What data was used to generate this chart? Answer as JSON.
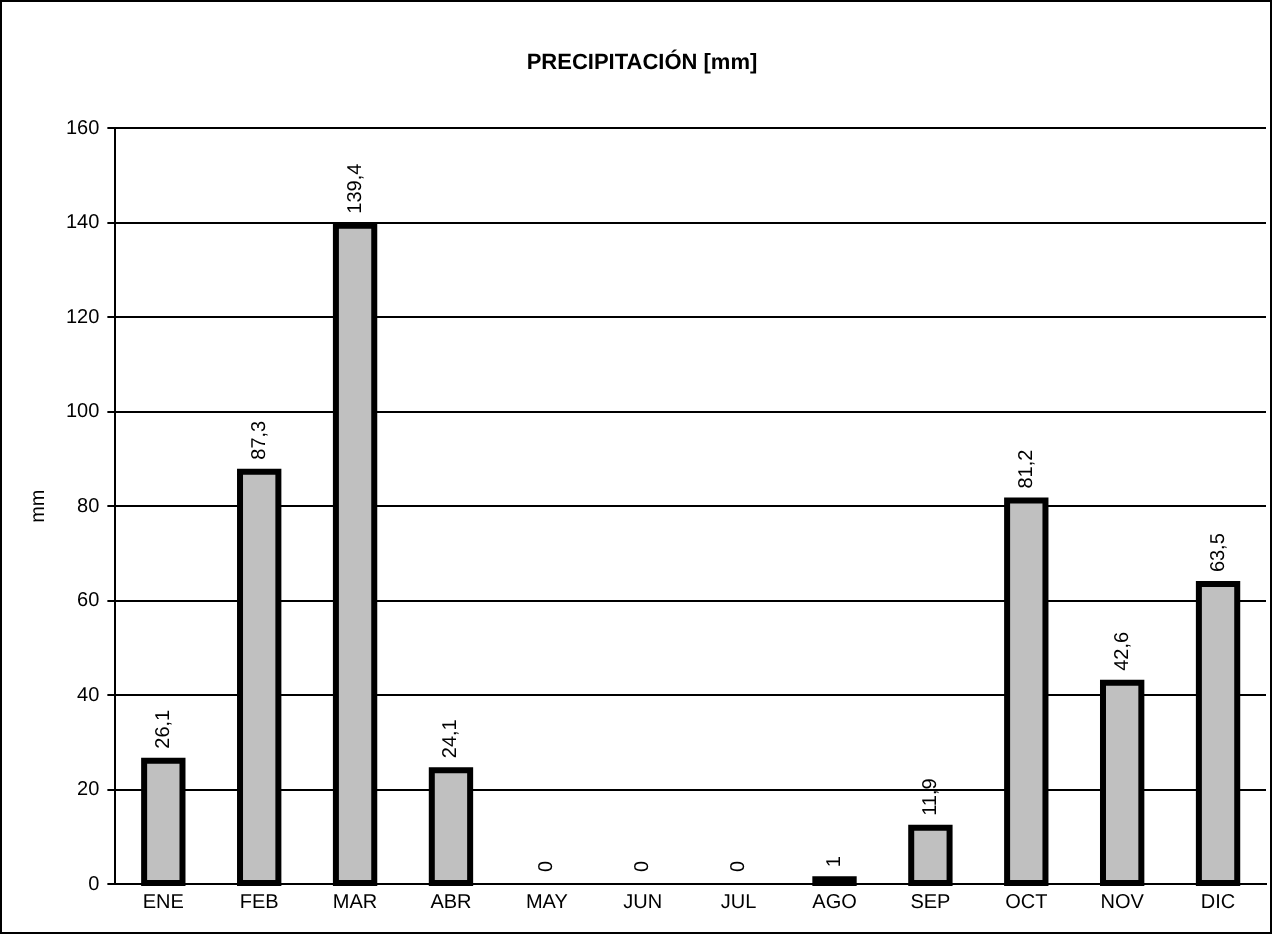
{
  "chart_data": {
    "type": "bar",
    "title": "PRECIPITACIÓN [mm]",
    "ylabel": "mm",
    "categories": [
      "ENE",
      "FEB",
      "MAR",
      "ABR",
      "MAY",
      "JUN",
      "JUL",
      "AGO",
      "SEP",
      "OCT",
      "NOV",
      "DIC"
    ],
    "values": [
      26.1,
      87.3,
      139.4,
      24.1,
      0,
      0,
      0,
      1,
      11.9,
      81.2,
      42.6,
      63.5
    ],
    "value_labels": [
      "26,1",
      "87,3",
      "139,4",
      "24,1",
      "0",
      "0",
      "0",
      "1",
      "11,9",
      "81,2",
      "42,6",
      "63,5"
    ],
    "color": "#c0c0c0",
    "ylim": [
      0,
      160
    ],
    "yticks": [
      0,
      20,
      40,
      60,
      80,
      100,
      120,
      140,
      160
    ],
    "grid": "y",
    "legend": false
  }
}
